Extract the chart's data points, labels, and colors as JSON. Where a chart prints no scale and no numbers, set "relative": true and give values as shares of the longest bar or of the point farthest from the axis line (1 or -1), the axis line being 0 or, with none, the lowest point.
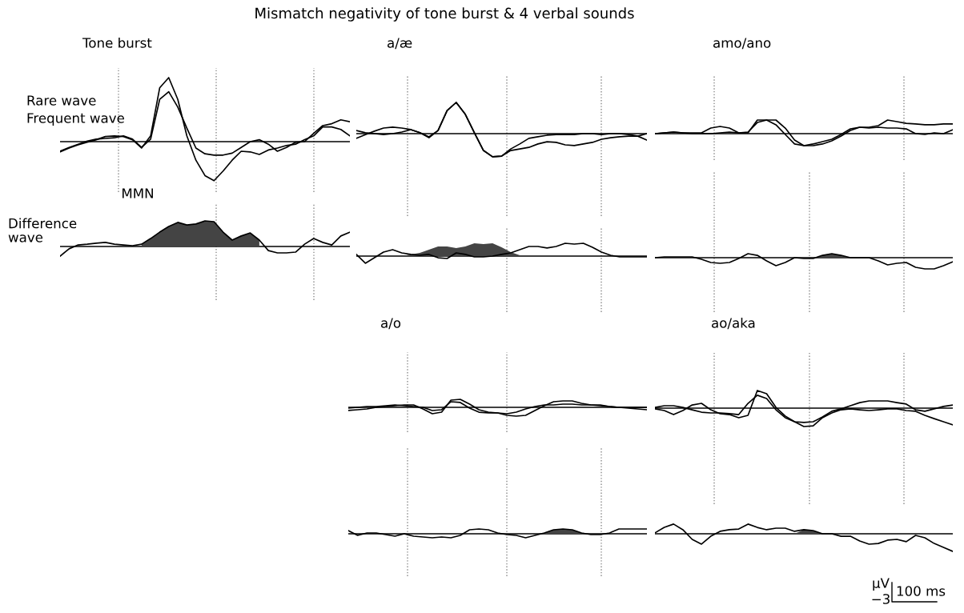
{
  "chart_data": [
    {
      "type": "line",
      "relative": true,
      "title": "Tone burst",
      "categories": [
        null,
        null,
        null,
        null,
        null,
        null,
        null,
        null,
        null,
        null,
        null,
        null,
        null,
        null,
        null,
        null,
        null,
        null,
        null,
        null,
        null,
        null,
        null,
        null,
        null,
        null,
        null,
        null,
        null,
        null,
        null,
        null,
        null
      ],
      "series": [
        {
          "name": "Rare wave",
          "color": "#000000",
          "values": [
            -0.16,
            -0.1,
            -0.05,
            -0.01,
            0.03,
            0.08,
            0.09,
            0.08,
            0.03,
            -0.1,
            0.09,
            0.84,
            1,
            0.66,
            0.09,
            -0.29,
            -0.53,
            -0.61,
            -0.46,
            -0.29,
            -0.15,
            -0.16,
            -0.2,
            -0.13,
            -0.1,
            -0.06,
            -0.04,
            0.03,
            0.09,
            0.23,
            0.23,
            0.19,
            0.09
          ]
        },
        {
          "name": "Frequent wave",
          "color": "#000000",
          "values": [
            -0.15,
            -0.09,
            -0.04,
            0.01,
            0.04,
            0.05,
            0.06,
            0.09,
            0.04,
            -0.09,
            0.04,
            0.66,
            0.78,
            0.54,
            0.21,
            -0.1,
            -0.19,
            -0.21,
            -0.21,
            -0.18,
            -0.09,
            0,
            0.03,
            -0.04,
            -0.15,
            -0.09,
            -0.01,
            0,
            0.13,
            0.25,
            0.28,
            0.34,
            0.31
          ]
        }
      ],
      "annotations": [
        "Mismatch negativity of tone burst & 4 verbal sounds"
      ]
    },
    {
      "type": "line",
      "relative": true,
      "categories": [
        null,
        null,
        null,
        null,
        null,
        null,
        null,
        null,
        null,
        null,
        null,
        null,
        null,
        null,
        null,
        null,
        null,
        null,
        null,
        null,
        null,
        null,
        null,
        null,
        null,
        null,
        null,
        null,
        null,
        null,
        null,
        null,
        null
      ],
      "series": [
        {
          "type": "area",
          "color": "#444444",
          "values": [
            null,
            null,
            null,
            null,
            null,
            null,
            null,
            null,
            null,
            0.09,
            0.31,
            0.56,
            0.78,
            0.94,
            0.84,
            0.88,
            1,
            0.97,
            0.56,
            0.25,
            0.41,
            0.53,
            0.25,
            null,
            null,
            null,
            null,
            null,
            null,
            null,
            null,
            null,
            null
          ]
        },
        {
          "name": "Difference\nwave",
          "color": "#000000",
          "values": [
            -0.38,
            -0.09,
            0.06,
            0.09,
            0.13,
            0.16,
            0.09,
            0.06,
            0.03,
            0.09,
            0.31,
            0.56,
            0.78,
            0.94,
            0.84,
            0.88,
            1,
            0.97,
            0.56,
            0.25,
            0.41,
            0.53,
            0.25,
            -0.16,
            -0.25,
            -0.25,
            -0.22,
            0.09,
            0.31,
            0.16,
            0.06,
            0.41,
            0.56
          ]
        }
      ],
      "annotations": [
        "MMN"
      ]
    },
    {
      "type": "line",
      "relative": true,
      "title": "a/æ",
      "categories": [
        null,
        null,
        null,
        null,
        null,
        null,
        null,
        null,
        null,
        null,
        null,
        null,
        null,
        null,
        null,
        null,
        null,
        null,
        null,
        null,
        null,
        null,
        null,
        null,
        null,
        null,
        null,
        null,
        null,
        null,
        null,
        null,
        null
      ],
      "series": [
        {
          "color": "#000000",
          "values": [
            -0.15,
            -0.03,
            0.08,
            0.18,
            0.21,
            0.18,
            0.13,
            0.03,
            -0.1,
            0.1,
            0.74,
            1,
            0.62,
            0.03,
            -0.54,
            -0.74,
            -0.72,
            -0.54,
            -0.49,
            -0.44,
            -0.33,
            -0.26,
            -0.28,
            -0.36,
            -0.38,
            -0.33,
            -0.28,
            -0.18,
            -0.13,
            -0.1,
            -0.08,
            -0.08,
            0
          ]
        },
        {
          "color": "#000000",
          "values": [
            0.1,
            0.03,
            0,
            -0.03,
            0,
            0.05,
            0.13,
            0.03,
            -0.13,
            0.1,
            0.74,
            1,
            0.62,
            0.03,
            -0.54,
            -0.74,
            -0.72,
            -0.49,
            -0.33,
            -0.15,
            -0.1,
            -0.05,
            -0.03,
            -0.03,
            -0.03,
            0,
            0,
            -0.03,
            0,
            0,
            -0.03,
            -0.08,
            -0.21
          ]
        }
      ]
    },
    {
      "type": "line",
      "relative": true,
      "categories": [
        null,
        null,
        null,
        null,
        null,
        null,
        null,
        null,
        null,
        null,
        null,
        null,
        null,
        null,
        null,
        null,
        null,
        null,
        null,
        null,
        null,
        null,
        null,
        null,
        null,
        null,
        null,
        null,
        null,
        null,
        null,
        null,
        null
      ],
      "series": [
        {
          "type": "area",
          "color": "#444444",
          "values": [
            null,
            null,
            null,
            null,
            null,
            0,
            0.13,
            0.25,
            0.5,
            0.75,
            0.75,
            0.63,
            0.75,
            1,
            0.94,
            1,
            0.69,
            0.31,
            0.06,
            null,
            null,
            null,
            null,
            null,
            null,
            null,
            null,
            null,
            null,
            null,
            null,
            null,
            null
          ]
        },
        {
          "color": "#000000",
          "values": [
            0.13,
            -0.56,
            -0.13,
            0.31,
            0.5,
            0.25,
            0.13,
            0.06,
            0.13,
            -0.13,
            -0.19,
            0.25,
            0.13,
            -0.06,
            -0.06,
            0,
            0.13,
            0.25,
            0.5,
            0.75,
            0.75,
            0.63,
            0.75,
            1,
            0.94,
            1,
            0.69,
            0.31,
            0.06,
            -0.06,
            -0.06,
            -0.06,
            -0.06
          ]
        }
      ]
    },
    {
      "type": "line",
      "relative": true,
      "title": "amo/ano",
      "categories": [
        null,
        null,
        null,
        null,
        null,
        null,
        null,
        null,
        null,
        null,
        null,
        null,
        null,
        null,
        null,
        null,
        null,
        null,
        null,
        null,
        null,
        null,
        null,
        null,
        null,
        null,
        null,
        null,
        null,
        null,
        null,
        null,
        null
      ],
      "series": [
        {
          "color": "#000000",
          "values": [
            0,
            0.06,
            0.12,
            0.06,
            0.06,
            0.06,
            0.41,
            0.53,
            0.41,
            0.06,
            0.06,
            1,
            1,
            0.65,
            -0.06,
            -0.76,
            -0.88,
            -0.76,
            -0.59,
            -0.41,
            -0.06,
            0.35,
            0.47,
            0.47,
            0.59,
            1,
            0.88,
            0.76,
            0.71,
            0.65,
            0.65,
            0.71,
            0.71
          ]
        },
        {
          "color": "#000000",
          "values": [
            0,
            0.06,
            0.12,
            0.06,
            0,
            0,
            0,
            0.06,
            0.12,
            0.06,
            0.12,
            0.82,
            1,
            1,
            0.41,
            -0.47,
            -0.88,
            -0.88,
            -0.76,
            -0.53,
            -0.18,
            0.24,
            0.47,
            0.41,
            0.47,
            0.41,
            0.41,
            0.35,
            0,
            -0.06,
            0.06,
            0,
            0.29
          ]
        }
      ]
    },
    {
      "type": "line",
      "relative": true,
      "categories": [
        null,
        null,
        null,
        null,
        null,
        null,
        null,
        null,
        null,
        null,
        null,
        null,
        null,
        null,
        null,
        null,
        null,
        null,
        null,
        null,
        null,
        null,
        null,
        null,
        null,
        null,
        null,
        null,
        null,
        null,
        null,
        null,
        null
      ],
      "series": [
        {
          "type": "area",
          "color": "#444444",
          "values": [
            null,
            null,
            null,
            null,
            null,
            null,
            null,
            null,
            null,
            null,
            null,
            null,
            null,
            null,
            null,
            null,
            null,
            -0.07,
            0.21,
            0.36,
            0.21,
            0,
            null,
            null,
            null,
            null,
            null,
            null,
            null,
            null,
            null,
            null,
            null
          ]
        },
        {
          "color": "#000000",
          "values": [
            0,
            0.07,
            0.07,
            0.07,
            0.07,
            -0.14,
            -0.43,
            -0.5,
            -0.43,
            -0.07,
            0.36,
            0.21,
            -0.29,
            -0.71,
            -0.43,
            0,
            -0.07,
            -0.07,
            0.21,
            0.36,
            0.21,
            0,
            0,
            0,
            -0.29,
            -0.64,
            -0.5,
            -0.43,
            -0.86,
            -1,
            -1,
            -0.71,
            -0.36
          ]
        }
      ]
    },
    {
      "type": "line",
      "relative": true,
      "title": "a/o",
      "categories": [
        null,
        null,
        null,
        null,
        null,
        null,
        null,
        null,
        null,
        null,
        null,
        null,
        null,
        null,
        null,
        null,
        null,
        null,
        null,
        null,
        null,
        null,
        null,
        null,
        null,
        null,
        null,
        null,
        null,
        null,
        null,
        null,
        null
      ],
      "series": [
        {
          "color": "#000000",
          "values": [
            -0.36,
            -0.27,
            -0.18,
            0,
            0.09,
            0.18,
            0.27,
            0.27,
            -0.18,
            -0.73,
            -0.55,
            0.82,
            0.91,
            0.36,
            -0.27,
            -0.55,
            -0.64,
            -0.91,
            -1,
            -0.91,
            -0.36,
            0.18,
            0.64,
            0.73,
            0.73,
            0.45,
            0.27,
            0.18,
            0.09,
            0,
            -0.09,
            -0.18,
            -0.27
          ]
        },
        {
          "color": "#000000",
          "values": [
            -0.09,
            0,
            0.09,
            0.09,
            0.18,
            0.27,
            0.18,
            0.09,
            0,
            -0.36,
            -0.27,
            0.64,
            0.55,
            -0.09,
            -0.55,
            -0.64,
            -0.64,
            -0.73,
            -0.55,
            -0.18,
            0.09,
            0.27,
            0.27,
            0.36,
            0.36,
            0.27,
            0.27,
            0.27,
            0.09,
            0,
            0,
            0,
            0
          ]
        }
      ]
    },
    {
      "type": "line",
      "relative": true,
      "categories": [
        null,
        null,
        null,
        null,
        null,
        null,
        null,
        null,
        null,
        null,
        null,
        null,
        null,
        null,
        null,
        null,
        null,
        null,
        null,
        null,
        null,
        null,
        null,
        null,
        null,
        null,
        null,
        null,
        null,
        null,
        null,
        null,
        null
      ],
      "series": [
        {
          "type": "area",
          "color": "#444444",
          "values": [
            null,
            null,
            null,
            null,
            null,
            null,
            null,
            null,
            null,
            null,
            null,
            null,
            null,
            null,
            null,
            null,
            null,
            null,
            null,
            null,
            null,
            0.17,
            0.83,
            1,
            0.83,
            0.17,
            null,
            null,
            null,
            null,
            null,
            null,
            null
          ]
        },
        {
          "color": "#000000",
          "values": [
            0.67,
            -0.33,
            0.17,
            0.17,
            -0.17,
            -0.5,
            0,
            -0.5,
            -0.67,
            -0.83,
            -0.67,
            -0.83,
            -0.33,
            0.83,
            1,
            0.83,
            0.17,
            -0.17,
            -0.33,
            -0.83,
            -0.33,
            0.17,
            0.83,
            1,
            0.83,
            0.17,
            -0.17,
            -0.17,
            0.17,
            1,
            1,
            1,
            1
          ]
        }
      ]
    },
    {
      "type": "line",
      "relative": true,
      "title": "ao/aka",
      "categories": [
        null,
        null,
        null,
        null,
        null,
        null,
        null,
        null,
        null,
        null,
        null,
        null,
        null,
        null,
        null,
        null,
        null,
        null,
        null,
        null,
        null,
        null,
        null,
        null,
        null,
        null,
        null,
        null,
        null,
        null,
        null,
        null,
        null
      ],
      "series": [
        {
          "color": "#000000",
          "values": [
            -0.04,
            -0.13,
            -0.35,
            -0.13,
            0.17,
            0.26,
            -0.09,
            -0.3,
            -0.35,
            -0.52,
            -0.39,
            0.96,
            0.78,
            0.04,
            -0.43,
            -0.74,
            -1,
            -0.96,
            -0.52,
            -0.26,
            -0.09,
            -0.04,
            -0.09,
            -0.13,
            -0.09,
            -0.04,
            -0.04,
            -0.13,
            -0.17,
            -0.39,
            -0.57,
            -0.74,
            -0.91
          ]
        },
        {
          "color": "#000000",
          "values": [
            0.04,
            0.13,
            0.13,
            0.04,
            -0.09,
            -0.22,
            -0.26,
            -0.26,
            -0.3,
            -0.35,
            0.26,
            0.7,
            0.52,
            -0.09,
            -0.52,
            -0.74,
            -0.78,
            -0.74,
            -0.48,
            -0.17,
            -0.04,
            0.13,
            0.3,
            0.39,
            0.39,
            0.39,
            0.3,
            0.22,
            -0.09,
            -0.17,
            -0.04,
            0.09,
            0.17
          ]
        }
      ]
    },
    {
      "type": "line",
      "relative": true,
      "categories": [
        null,
        null,
        null,
        null,
        null,
        null,
        null,
        null,
        null,
        null,
        null,
        null,
        null,
        null,
        null,
        null,
        null,
        null,
        null,
        null,
        null,
        null,
        null,
        null,
        null,
        null,
        null,
        null,
        null,
        null,
        null,
        null,
        null
      ],
      "series": [
        {
          "type": "area",
          "color": "#444444",
          "values": [
            null,
            null,
            null,
            null,
            null,
            null,
            null,
            null,
            null,
            null,
            null,
            null,
            null,
            null,
            null,
            0,
            0.23,
            0.18,
            0,
            null,
            null,
            null,
            null,
            null,
            null,
            null,
            null,
            null,
            null,
            null,
            null,
            null,
            null
          ]
        },
        {
          "color": "#000000",
          "values": [
            0.05,
            0.36,
            0.55,
            0.23,
            -0.32,
            -0.59,
            -0.14,
            0.14,
            0.23,
            0.27,
            0.55,
            0.36,
            0.23,
            0.32,
            0.32,
            0.14,
            0.23,
            0.18,
            0,
            0,
            -0.14,
            -0.14,
            -0.41,
            -0.59,
            -0.55,
            -0.36,
            -0.32,
            -0.45,
            -0.09,
            -0.23,
            -0.55,
            -0.77,
            -1
          ]
        }
      ],
      "annotations": [
        "μV",
        "−3",
        "100 ms"
      ]
    }
  ]
}
